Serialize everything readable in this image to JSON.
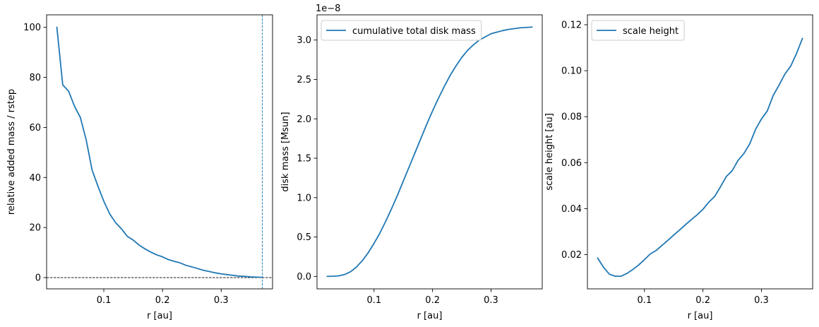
{
  "chart_data": [
    {
      "type": "line",
      "title": "",
      "xlabel": "r [au]",
      "ylabel": "relative added mass / rstep",
      "xlim": [
        0.0025,
        0.3875
      ],
      "ylim": [
        -4.5,
        105
      ],
      "xticks": [
        0.1,
        0.2,
        0.3
      ],
      "xtick_labels": [
        "0.1",
        "0.2",
        "0.3"
      ],
      "yticks": [
        0,
        20,
        40,
        60,
        80,
        100
      ],
      "ytick_labels": [
        "0",
        "20",
        "40",
        "60",
        "80",
        "100"
      ],
      "grid": false,
      "legend": null,
      "color": "#1f77b4",
      "reference_lines": [
        {
          "orientation": "horizontal",
          "value": 0,
          "style": "dashed",
          "color": "#000000"
        },
        {
          "orientation": "vertical",
          "value": 0.37,
          "style": "dashed",
          "color": "#1f77b4"
        }
      ],
      "series": [
        {
          "x": [
            0.02,
            0.03,
            0.04,
            0.05,
            0.06,
            0.07,
            0.08,
            0.09,
            0.1,
            0.11,
            0.12,
            0.13,
            0.14,
            0.15,
            0.16,
            0.17,
            0.18,
            0.19,
            0.2,
            0.21,
            0.22,
            0.23,
            0.24,
            0.25,
            0.26,
            0.27,
            0.28,
            0.29,
            0.3,
            0.31,
            0.32,
            0.33,
            0.34,
            0.35,
            0.36,
            0.37
          ],
          "y": [
            100,
            77,
            74.5,
            68.5,
            64,
            55,
            43,
            36.5,
            30.5,
            25.5,
            22,
            19.5,
            16.5,
            15,
            13,
            11.5,
            10.2,
            9.1,
            8.3,
            7.2,
            6.5,
            5.9,
            4.9,
            4.3,
            3.6,
            2.9,
            2.4,
            1.9,
            1.5,
            1.2,
            0.9,
            0.6,
            0.5,
            0.3,
            0.2,
            0.1
          ]
        }
      ]
    },
    {
      "type": "line",
      "title": "",
      "xlabel": "r [au]",
      "ylabel": "disk mass [Msun]",
      "y_offset_text": "1e−8",
      "xlim": [
        0.0025,
        0.3875
      ],
      "ylim": [
        -0.158,
        3.32
      ],
      "xticks": [
        0.1,
        0.2,
        0.3
      ],
      "xtick_labels": [
        "0.1",
        "0.2",
        "0.3"
      ],
      "yticks": [
        0,
        0.5,
        1.0,
        1.5,
        2.0,
        2.5,
        3.0
      ],
      "ytick_labels": [
        "0.0",
        "0.5",
        "1.0",
        "1.5",
        "2.0",
        "2.5",
        "3.0"
      ],
      "grid": false,
      "legend": {
        "position": "upper-left",
        "entries": [
          "cumulative total disk mass"
        ]
      },
      "color": "#1f77b4",
      "series": [
        {
          "name": "cumulative total disk mass",
          "x": [
            0.02,
            0.03,
            0.04,
            0.05,
            0.06,
            0.07,
            0.08,
            0.09,
            0.1,
            0.11,
            0.12,
            0.13,
            0.14,
            0.15,
            0.16,
            0.17,
            0.18,
            0.19,
            0.2,
            0.21,
            0.22,
            0.23,
            0.24,
            0.25,
            0.26,
            0.27,
            0.28,
            0.29,
            0.3,
            0.31,
            0.32,
            0.33,
            0.34,
            0.35,
            0.36,
            0.37
          ],
          "y": [
            0.0,
            0.002,
            0.008,
            0.025,
            0.06,
            0.12,
            0.2,
            0.3,
            0.42,
            0.55,
            0.7,
            0.86,
            1.03,
            1.21,
            1.39,
            1.57,
            1.75,
            1.93,
            2.1,
            2.26,
            2.41,
            2.55,
            2.67,
            2.78,
            2.87,
            2.94,
            3.0,
            3.04,
            3.08,
            3.1,
            3.12,
            3.135,
            3.145,
            3.155,
            3.16,
            3.165
          ]
        }
      ]
    },
    {
      "type": "line",
      "title": "",
      "xlabel": "r [au]",
      "ylabel": "scale height [au]",
      "xlim": [
        0.0025,
        0.3875
      ],
      "ylim": [
        0.0051,
        0.1243
      ],
      "xticks": [
        0.1,
        0.2,
        0.3
      ],
      "xtick_labels": [
        "0.1",
        "0.2",
        "0.3"
      ],
      "yticks": [
        0.02,
        0.04,
        0.06,
        0.08,
        0.1,
        0.12
      ],
      "ytick_labels": [
        "0.02",
        "0.04",
        "0.06",
        "0.08",
        "0.10",
        "0.12"
      ],
      "grid": false,
      "legend": {
        "position": "upper-left",
        "entries": [
          "scale height"
        ]
      },
      "color": "#1f77b4",
      "series": [
        {
          "name": "scale height",
          "x": [
            0.02,
            0.03,
            0.04,
            0.05,
            0.06,
            0.07,
            0.08,
            0.09,
            0.1,
            0.11,
            0.12,
            0.13,
            0.14,
            0.15,
            0.16,
            0.17,
            0.18,
            0.19,
            0.2,
            0.21,
            0.22,
            0.23,
            0.24,
            0.25,
            0.26,
            0.27,
            0.28,
            0.29,
            0.3,
            0.31,
            0.32,
            0.33,
            0.34,
            0.35,
            0.36,
            0.37
          ],
          "y": [
            0.0185,
            0.0145,
            0.0115,
            0.0106,
            0.0106,
            0.0118,
            0.0135,
            0.0155,
            0.0178,
            0.0203,
            0.0218,
            0.024,
            0.0262,
            0.0285,
            0.0307,
            0.033,
            0.0352,
            0.0373,
            0.0397,
            0.0428,
            0.0453,
            0.0495,
            0.054,
            0.0565,
            0.061,
            0.064,
            0.0682,
            0.0745,
            0.079,
            0.0825,
            0.0892,
            0.0937,
            0.0985,
            0.102,
            0.1075,
            0.114
          ]
        }
      ]
    }
  ]
}
